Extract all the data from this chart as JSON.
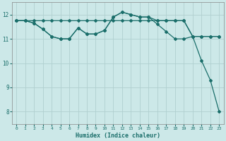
{
  "xlabel": "Humidex (Indice chaleur)",
  "background_color": "#cce8e8",
  "grid_color": "#b0d0d0",
  "line_color": "#1a6e6a",
  "xlim": [
    -0.5,
    23.5
  ],
  "ylim": [
    7.5,
    12.5
  ],
  "yticks": [
    8,
    9,
    10,
    11,
    12
  ],
  "xticks": [
    0,
    1,
    2,
    3,
    4,
    5,
    6,
    7,
    8,
    9,
    10,
    11,
    12,
    13,
    14,
    15,
    16,
    17,
    18,
    19,
    20,
    21,
    22,
    23
  ],
  "flat_x": [
    0,
    1,
    2,
    3,
    4,
    5,
    6,
    7,
    8,
    9,
    10,
    11,
    12,
    13,
    14,
    15,
    16,
    17,
    18,
    19,
    20,
    21,
    22,
    23
  ],
  "flat_y": [
    11.75,
    11.75,
    11.75,
    11.75,
    11.75,
    11.75,
    11.75,
    11.75,
    11.75,
    11.75,
    11.75,
    11.75,
    11.75,
    11.75,
    11.75,
    11.75,
    11.75,
    11.75,
    11.75,
    11.75,
    11.1,
    11.1,
    11.1,
    11.1
  ],
  "peak_x": [
    0,
    1,
    2,
    3,
    4,
    5,
    6,
    7,
    8,
    9,
    10,
    11,
    12,
    13,
    14,
    15,
    16,
    17,
    18,
    19,
    20,
    21,
    22,
    23
  ],
  "peak_y": [
    11.75,
    11.75,
    11.65,
    11.4,
    11.1,
    11.0,
    11.0,
    11.45,
    11.2,
    11.2,
    11.35,
    11.9,
    12.1,
    12.0,
    11.9,
    11.9,
    11.75,
    11.75,
    11.75,
    11.75,
    11.1,
    11.1,
    11.1,
    11.1
  ],
  "drop_x": [
    0,
    1,
    2,
    3,
    4,
    5,
    6,
    7,
    8,
    9,
    10,
    11,
    12,
    13,
    14,
    15,
    16,
    17,
    18,
    19,
    20,
    21,
    22,
    23
  ],
  "drop_y": [
    11.75,
    11.75,
    11.65,
    11.4,
    11.1,
    11.0,
    11.0,
    11.45,
    11.2,
    11.2,
    11.35,
    11.9,
    12.1,
    12.0,
    11.9,
    11.9,
    11.6,
    11.3,
    11.0,
    11.0,
    11.1,
    10.1,
    9.3,
    8.0
  ]
}
